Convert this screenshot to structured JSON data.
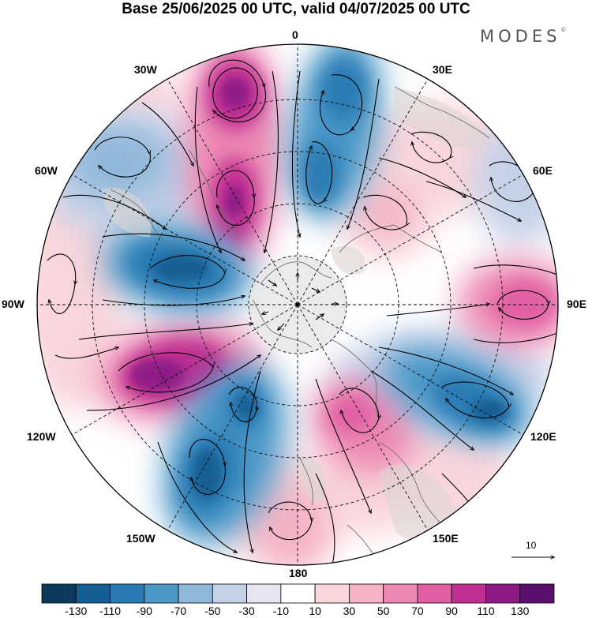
{
  "title": "Base 25/06/2025 00 UTC, valid 04/07/2025 00 UTC",
  "logo": "MODES",
  "logo_mark": "©",
  "longitude_labels": {
    "lon_0": "0",
    "lon_30e": "30E",
    "lon_60e": "60E",
    "lon_90e": "90E",
    "lon_120e": "120E",
    "lon_150e": "150E",
    "lon_180": "180",
    "lon_150w": "150W",
    "lon_120w": "120W",
    "lon_90w": "90W",
    "lon_60w": "60W",
    "lon_30w": "30W"
  },
  "reference_vector": {
    "label": "10"
  },
  "colorbar": {
    "labels": [
      "-130",
      "-110",
      "-90",
      "-70",
      "-50",
      "-30",
      "-10",
      "10",
      "30",
      "50",
      "70",
      "90",
      "110",
      "130"
    ],
    "colors": [
      "#0b3a5c",
      "#135f93",
      "#2a7ab3",
      "#4a97c8",
      "#8fb7da",
      "#c4d2e8",
      "#e5e6f2",
      "#ffffff",
      "#f9d6dc",
      "#f5b3c5",
      "#ed88b3",
      "#e05fa3",
      "#c02f92",
      "#8e1a86",
      "#5b0f6e"
    ]
  },
  "colors": {
    "land": "#dcd6d3",
    "pole_region": "#e8e8e8",
    "coast": "#6e6e6e"
  }
}
